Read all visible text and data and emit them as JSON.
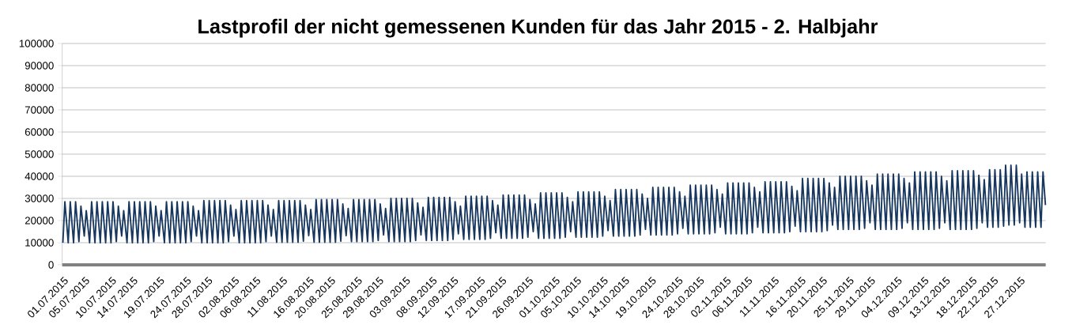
{
  "chart_data": {
    "type": "line",
    "title": "Lastprofil der nicht gemessenen Kunden für das Jahr 2015 - 2. Halbjahr",
    "color": "#17375e",
    "grid": "y",
    "xlim": [
      "2015-07-01T00:00",
      "2016-01-01T00:00"
    ],
    "ylim": [
      0,
      100000
    ],
    "yticks": [
      0,
      10000,
      20000,
      30000,
      40000,
      50000,
      60000,
      70000,
      80000,
      90000,
      100000
    ],
    "xticks": [
      {
        "value": "2015-07-01",
        "label": "01.07.2015"
      },
      {
        "value": "2015-07-05",
        "label": "05.07.2015"
      },
      {
        "value": "2015-07-10",
        "label": "10.07.2015"
      },
      {
        "value": "2015-07-14",
        "label": "14.07.2015"
      },
      {
        "value": "2015-07-19",
        "label": "19.07.2015"
      },
      {
        "value": "2015-07-24",
        "label": "24.07.2015"
      },
      {
        "value": "2015-07-28",
        "label": "28.07.2015"
      },
      {
        "value": "2015-08-02",
        "label": "02.08.2015"
      },
      {
        "value": "2015-08-06",
        "label": "06.08.2015"
      },
      {
        "value": "2015-08-11",
        "label": "11.08.2015"
      },
      {
        "value": "2015-08-16",
        "label": "16.08.2015"
      },
      {
        "value": "2015-08-20",
        "label": "20.08.2015"
      },
      {
        "value": "2015-08-25",
        "label": "25.08.2015"
      },
      {
        "value": "2015-08-29",
        "label": "29.08.2015"
      },
      {
        "value": "2015-09-03",
        "label": "03.09.2015"
      },
      {
        "value": "2015-09-08",
        "label": "08.09.2015"
      },
      {
        "value": "2015-09-12",
        "label": "12.09.2015"
      },
      {
        "value": "2015-09-17",
        "label": "17.09.2015"
      },
      {
        "value": "2015-09-21",
        "label": "21.09.2015"
      },
      {
        "value": "2015-09-26",
        "label": "26.09.2015"
      },
      {
        "value": "2015-10-01",
        "label": "01.10.2015"
      },
      {
        "value": "2015-10-05",
        "label": "05.10.2015"
      },
      {
        "value": "2015-10-10",
        "label": "10.10.2015"
      },
      {
        "value": "2015-10-14",
        "label": "14.10.2015"
      },
      {
        "value": "2015-10-19",
        "label": "19.10.2015"
      },
      {
        "value": "2015-10-24",
        "label": "24.10.2015"
      },
      {
        "value": "2015-10-28",
        "label": "28.10.2015"
      },
      {
        "value": "2015-11-02",
        "label": "02.11.2015"
      },
      {
        "value": "2015-11-06",
        "label": "06.11.2015"
      },
      {
        "value": "2015-11-11",
        "label": "11.11.2015"
      },
      {
        "value": "2015-11-16",
        "label": "16.11.2015"
      },
      {
        "value": "2015-11-20",
        "label": "20.11.2015"
      },
      {
        "value": "2015-11-25",
        "label": "25.11.2015"
      },
      {
        "value": "2015-11-29",
        "label": "29.11.2015"
      },
      {
        "value": "2015-12-04",
        "label": "04.12.2015"
      },
      {
        "value": "2015-12-09",
        "label": "09.12.2015"
      },
      {
        "value": "2015-12-13",
        "label": "13.12.2015"
      },
      {
        "value": "2015-12-18",
        "label": "18.12.2015"
      },
      {
        "value": "2015-12-22",
        "label": "22.12.2015"
      },
      {
        "value": "2015-12-27",
        "label": "27.12.2015"
      }
    ],
    "x": [
      "2015-07-01T03:00",
      "2015-07-01T12:00",
      "2015-07-02T03:00",
      "2015-07-02T12:00",
      "2015-07-03T03:00",
      "2015-07-03T12:00",
      "2015-07-04T03:00",
      "2015-07-04T12:00",
      "2015-07-05T03:00",
      "2015-07-05T12:00",
      "2015-07-06T03:00",
      "2015-07-06T12:00",
      "2015-07-07T03:00",
      "2015-07-07T12:00",
      "2015-07-08T03:00",
      "2015-07-08T12:00",
      "2015-07-09T03:00",
      "2015-07-09T12:00",
      "2015-07-10T03:00",
      "2015-07-10T12:00",
      "2015-07-11T03:00",
      "2015-07-11T12:00",
      "2015-07-12T03:00",
      "2015-07-12T12:00",
      "2015-07-13T03:00",
      "2015-07-13T12:00",
      "2015-07-14T03:00",
      "2015-07-14T12:00",
      "2015-07-15T03:00",
      "2015-07-15T12:00",
      "2015-07-16T03:00",
      "2015-07-16T12:00",
      "2015-07-17T03:00",
      "2015-07-17T12:00",
      "2015-07-18T03:00",
      "2015-07-18T12:00",
      "2015-07-19T03:00",
      "2015-07-19T12:00",
      "2015-07-20T03:00",
      "2015-07-20T12:00",
      "2015-07-21T03:00",
      "2015-07-21T12:00",
      "2015-07-22T03:00",
      "2015-07-22T12:00",
      "2015-07-23T03:00",
      "2015-07-23T12:00",
      "2015-07-24T03:00",
      "2015-07-24T12:00",
      "2015-07-25T03:00",
      "2015-07-25T12:00",
      "2015-07-26T03:00",
      "2015-07-26T12:00",
      "2015-07-27T03:00",
      "2015-07-27T12:00",
      "2015-07-28T03:00",
      "2015-07-28T12:00",
      "2015-07-29T03:00",
      "2015-07-29T12:00",
      "2015-07-30T03:00",
      "2015-07-30T12:00",
      "2015-07-31T03:00",
      "2015-07-31T12:00",
      "2015-08-01T03:00",
      "2015-08-01T12:00",
      "2015-08-02T03:00",
      "2015-08-02T12:00",
      "2015-08-03T03:00",
      "2015-08-03T12:00",
      "2015-08-04T03:00",
      "2015-08-04T12:00",
      "2015-08-05T03:00",
      "2015-08-05T12:00",
      "2015-08-06T03:00",
      "2015-08-06T12:00",
      "2015-08-07T03:00",
      "2015-08-07T12:00",
      "2015-08-08T03:00",
      "2015-08-08T12:00",
      "2015-08-09T03:00",
      "2015-08-09T12:00",
      "2015-08-10T03:00",
      "2015-08-10T12:00",
      "2015-08-11T03:00",
      "2015-08-11T12:00",
      "2015-08-12T03:00",
      "2015-08-12T12:00",
      "2015-08-13T03:00",
      "2015-08-13T12:00",
      "2015-08-14T03:00",
      "2015-08-14T12:00",
      "2015-08-15T03:00",
      "2015-08-15T12:00",
      "2015-08-16T03:00",
      "2015-08-16T12:00",
      "2015-08-17T03:00",
      "2015-08-17T12:00",
      "2015-08-18T03:00",
      "2015-08-18T12:00",
      "2015-08-19T03:00",
      "2015-08-19T12:00",
      "2015-08-20T03:00",
      "2015-08-20T12:00",
      "2015-08-21T03:00",
      "2015-08-21T12:00",
      "2015-08-22T03:00",
      "2015-08-22T12:00",
      "2015-08-23T03:00",
      "2015-08-23T12:00",
      "2015-08-24T03:00",
      "2015-08-24T12:00",
      "2015-08-25T03:00",
      "2015-08-25T12:00",
      "2015-08-26T03:00",
      "2015-08-26T12:00",
      "2015-08-27T03:00",
      "2015-08-27T12:00",
      "2015-08-28T03:00",
      "2015-08-28T12:00",
      "2015-08-29T03:00",
      "2015-08-29T12:00",
      "2015-08-30T03:00",
      "2015-08-30T12:00",
      "2015-08-31T03:00",
      "2015-08-31T12:00",
      "2015-09-01T03:00",
      "2015-09-01T12:00",
      "2015-09-02T03:00",
      "2015-09-02T12:00",
      "2015-09-03T03:00",
      "2015-09-03T12:00",
      "2015-09-04T03:00",
      "2015-09-04T12:00",
      "2015-09-05T03:00",
      "2015-09-05T12:00",
      "2015-09-06T03:00",
      "2015-09-06T12:00",
      "2015-09-07T03:00",
      "2015-09-07T12:00",
      "2015-09-08T03:00",
      "2015-09-08T12:00",
      "2015-09-09T03:00",
      "2015-09-09T12:00",
      "2015-09-10T03:00",
      "2015-09-10T12:00",
      "2015-09-11T03:00",
      "2015-09-11T12:00",
      "2015-09-12T03:00",
      "2015-09-12T12:00",
      "2015-09-13T03:00",
      "2015-09-13T12:00",
      "2015-09-14T03:00",
      "2015-09-14T12:00",
      "2015-09-15T03:00",
      "2015-09-15T12:00",
      "2015-09-16T03:00",
      "2015-09-16T12:00",
      "2015-09-17T03:00",
      "2015-09-17T12:00",
      "2015-09-18T03:00",
      "2015-09-18T12:00",
      "2015-09-19T03:00",
      "2015-09-19T12:00",
      "2015-09-20T03:00",
      "2015-09-20T12:00",
      "2015-09-21T03:00",
      "2015-09-21T12:00",
      "2015-09-22T03:00",
      "2015-09-22T12:00",
      "2015-09-23T03:00",
      "2015-09-23T12:00",
      "2015-09-24T03:00",
      "2015-09-24T12:00",
      "2015-09-25T03:00",
      "2015-09-25T12:00",
      "2015-09-26T03:00",
      "2015-09-26T12:00",
      "2015-09-27T03:00",
      "2015-09-27T12:00",
      "2015-09-28T03:00",
      "2015-09-28T12:00",
      "2015-09-29T03:00",
      "2015-09-29T12:00",
      "2015-09-30T03:00",
      "2015-09-30T12:00",
      "2015-10-01T03:00",
      "2015-10-01T12:00",
      "2015-10-02T03:00",
      "2015-10-02T12:00",
      "2015-10-03T03:00",
      "2015-10-03T12:00",
      "2015-10-04T03:00",
      "2015-10-04T12:00",
      "2015-10-05T03:00",
      "2015-10-05T12:00",
      "2015-10-06T03:00",
      "2015-10-06T12:00",
      "2015-10-07T03:00",
      "2015-10-07T12:00",
      "2015-10-08T03:00",
      "2015-10-08T12:00",
      "2015-10-09T03:00",
      "2015-10-09T12:00",
      "2015-10-10T03:00",
      "2015-10-10T12:00",
      "2015-10-11T03:00",
      "2015-10-11T12:00",
      "2015-10-12T03:00",
      "2015-10-12T12:00",
      "2015-10-13T03:00",
      "2015-10-13T12:00",
      "2015-10-14T03:00",
      "2015-10-14T12:00",
      "2015-10-15T03:00",
      "2015-10-15T12:00",
      "2015-10-16T03:00",
      "2015-10-16T12:00",
      "2015-10-17T03:00",
      "2015-10-17T12:00",
      "2015-10-18T03:00",
      "2015-10-18T12:00",
      "2015-10-19T03:00",
      "2015-10-19T12:00",
      "2015-10-20T03:00",
      "2015-10-20T12:00",
      "2015-10-21T03:00",
      "2015-10-21T12:00",
      "2015-10-22T03:00",
      "2015-10-22T12:00",
      "2015-10-23T03:00",
      "2015-10-23T12:00",
      "2015-10-24T03:00",
      "2015-10-24T12:00",
      "2015-10-25T03:00",
      "2015-10-25T12:00",
      "2015-10-26T03:00",
      "2015-10-26T12:00",
      "2015-10-27T03:00",
      "2015-10-27T12:00",
      "2015-10-28T03:00",
      "2015-10-28T12:00",
      "2015-10-29T03:00",
      "2015-10-29T12:00",
      "2015-10-30T03:00",
      "2015-10-30T12:00",
      "2015-10-31T03:00",
      "2015-10-31T12:00",
      "2015-11-01T03:00",
      "2015-11-01T12:00",
      "2015-11-02T03:00",
      "2015-11-02T12:00",
      "2015-11-03T03:00",
      "2015-11-03T12:00",
      "2015-11-04T03:00",
      "2015-11-04T12:00",
      "2015-11-05T03:00",
      "2015-11-05T12:00",
      "2015-11-06T03:00",
      "2015-11-06T12:00",
      "2015-11-07T03:00",
      "2015-11-07T12:00",
      "2015-11-08T03:00",
      "2015-11-08T12:00",
      "2015-11-09T03:00",
      "2015-11-09T12:00",
      "2015-11-10T03:00",
      "2015-11-10T12:00",
      "2015-11-11T03:00",
      "2015-11-11T12:00",
      "2015-11-12T03:00",
      "2015-11-12T12:00",
      "2015-11-13T03:00",
      "2015-11-13T12:00",
      "2015-11-14T03:00",
      "2015-11-14T12:00",
      "2015-11-15T03:00",
      "2015-11-15T12:00",
      "2015-11-16T03:00",
      "2015-11-16T12:00",
      "2015-11-17T03:00",
      "2015-11-17T12:00",
      "2015-11-18T03:00",
      "2015-11-18T12:00",
      "2015-11-19T03:00",
      "2015-11-19T12:00",
      "2015-11-20T03:00",
      "2015-11-20T12:00",
      "2015-11-21T03:00",
      "2015-11-21T12:00",
      "2015-11-22T03:00",
      "2015-11-22T12:00",
      "2015-11-23T03:00",
      "2015-11-23T12:00",
      "2015-11-24T03:00",
      "2015-11-24T12:00",
      "2015-11-25T03:00",
      "2015-11-25T12:00",
      "2015-11-26T03:00",
      "2015-11-26T12:00",
      "2015-11-27T03:00",
      "2015-11-27T12:00",
      "2015-11-28T03:00",
      "2015-11-28T12:00",
      "2015-11-29T03:00",
      "2015-11-29T12:00",
      "2015-11-30T03:00",
      "2015-11-30T12:00",
      "2015-12-01T03:00",
      "2015-12-01T12:00",
      "2015-12-02T03:00",
      "2015-12-02T12:00",
      "2015-12-03T03:00",
      "2015-12-03T12:00",
      "2015-12-04T03:00",
      "2015-12-04T12:00",
      "2015-12-05T03:00",
      "2015-12-05T12:00",
      "2015-12-06T03:00",
      "2015-12-06T12:00",
      "2015-12-07T03:00",
      "2015-12-07T12:00",
      "2015-12-08T03:00",
      "2015-12-08T12:00",
      "2015-12-09T03:00",
      "2015-12-09T12:00",
      "2015-12-10T03:00",
      "2015-12-10T12:00",
      "2015-12-11T03:00",
      "2015-12-11T12:00",
      "2015-12-12T03:00",
      "2015-12-12T12:00",
      "2015-12-13T03:00",
      "2015-12-13T12:00",
      "2015-12-14T03:00",
      "2015-12-14T12:00",
      "2015-12-15T03:00",
      "2015-12-15T12:00",
      "2015-12-16T03:00",
      "2015-12-16T12:00",
      "2015-12-17T03:00",
      "2015-12-17T12:00",
      "2015-12-18T03:00",
      "2015-12-18T12:00",
      "2015-12-19T03:00",
      "2015-12-19T12:00",
      "2015-12-20T03:00",
      "2015-12-20T12:00",
      "2015-12-21T03:00",
      "2015-12-21T12:00",
      "2015-12-22T03:00",
      "2015-12-22T12:00",
      "2015-12-23T03:00",
      "2015-12-23T12:00",
      "2015-12-24T03:00",
      "2015-12-24T12:00",
      "2015-12-25T03:00",
      "2015-12-25T12:00",
      "2015-12-26T03:00",
      "2015-12-26T12:00",
      "2015-12-27T03:00",
      "2015-12-27T12:00",
      "2015-12-28T03:00",
      "2015-12-28T12:00",
      "2015-12-29T03:00",
      "2015-12-29T12:00",
      "2015-12-30T03:00",
      "2015-12-30T12:00",
      "2015-12-31T03:00",
      "2015-12-31T12:00",
      "2015-12-31T23:00"
    ],
    "values": [
      10000,
      28500,
      10000,
      28500,
      10000,
      28500,
      10500,
      26500,
      13000,
      24500,
      10000,
      28500,
      10000,
      28500,
      10000,
      28500,
      10000,
      28500,
      10000,
      28500,
      10500,
      26500,
      13000,
      24500,
      10000,
      28500,
      10000,
      28500,
      10000,
      28500,
      10000,
      28500,
      10000,
      28500,
      10500,
      26500,
      13000,
      24500,
      10000,
      28500,
      10000,
      28500,
      10000,
      28500,
      10000,
      28500,
      10000,
      28500,
      10500,
      26500,
      13000,
      24500,
      10000,
      29000,
      10000,
      29000,
      10000,
      29000,
      10000,
      29000,
      10000,
      29000,
      10500,
      27000,
      13000,
      25000,
      10000,
      29000,
      10000,
      29000,
      10000,
      29000,
      10000,
      29000,
      10000,
      29000,
      10500,
      27000,
      13000,
      25000,
      10200,
      29000,
      10200,
      29000,
      10200,
      29000,
      10200,
      29000,
      10200,
      29000,
      10700,
      27000,
      13200,
      25000,
      10200,
      29500,
      10200,
      29500,
      10200,
      29500,
      10200,
      29500,
      10200,
      29500,
      10700,
      27500,
      13200,
      25500,
      10500,
      29500,
      10500,
      29500,
      10500,
      29500,
      10500,
      29500,
      10500,
      29500,
      11000,
      27500,
      13500,
      25500,
      10500,
      30000,
      10500,
      30000,
      10500,
      30000,
      10500,
      30000,
      10500,
      30000,
      11000,
      28000,
      13500,
      26000,
      11000,
      30500,
      11000,
      30500,
      11000,
      30500,
      11000,
      30500,
      11000,
      30500,
      11500,
      28500,
      14000,
      26500,
      11500,
      31000,
      11500,
      31000,
      11500,
      31000,
      11500,
      31000,
      11500,
      31000,
      12000,
      29000,
      14500,
      27000,
      12000,
      31500,
      12000,
      31500,
      12000,
      31500,
      12000,
      31500,
      12000,
      31500,
      12500,
      29500,
      15000,
      27500,
      12000,
      32500,
      12000,
      32500,
      12000,
      32500,
      12000,
      32500,
      12000,
      32500,
      12500,
      30500,
      15000,
      28500,
      12500,
      33000,
      12500,
      33000,
      12500,
      33000,
      12500,
      33000,
      12500,
      33000,
      13000,
      31000,
      15500,
      29000,
      13000,
      34000,
      13000,
      34000,
      13000,
      34000,
      13000,
      34000,
      13000,
      34000,
      13500,
      32000,
      16000,
      30000,
      13500,
      35000,
      13500,
      35000,
      13500,
      35000,
      13500,
      35000,
      13500,
      35000,
      14000,
      33000,
      16500,
      31000,
      14000,
      36000,
      14000,
      36000,
      14000,
      36000,
      14000,
      36000,
      14000,
      36000,
      14500,
      34000,
      17000,
      32000,
      14000,
      37000,
      14000,
      37000,
      14000,
      37000,
      14000,
      37000,
      14000,
      37000,
      14500,
      35000,
      17000,
      33000,
      14500,
      37500,
      14500,
      37500,
      14500,
      37500,
      14500,
      37500,
      14500,
      37500,
      15000,
      35500,
      17500,
      33500,
      15000,
      39000,
      15000,
      39000,
      15000,
      39000,
      15000,
      39000,
      15000,
      39000,
      15500,
      37000,
      18000,
      35000,
      16000,
      40000,
      16000,
      40000,
      16000,
      40000,
      16000,
      40000,
      16000,
      40000,
      16500,
      38000,
      19000,
      36000,
      16000,
      41000,
      16000,
      41000,
      16000,
      41000,
      16000,
      41000,
      16000,
      41000,
      16500,
      39000,
      19000,
      37000,
      16000,
      42000,
      16000,
      42000,
      16000,
      42000,
      16000,
      42000,
      16000,
      42000,
      16500,
      40000,
      19000,
      38000,
      16000,
      42500,
      16000,
      42500,
      16000,
      42500,
      16000,
      42500,
      16000,
      42500,
      16500,
      40500,
      19000,
      38500,
      17000,
      43000,
      17000,
      43000,
      17000,
      43000,
      17500,
      45000,
      18000,
      45000,
      18000,
      45000,
      19000,
      41000,
      17000,
      42000,
      17000,
      42000,
      17000,
      42000,
      17000,
      42000,
      27000
    ]
  }
}
